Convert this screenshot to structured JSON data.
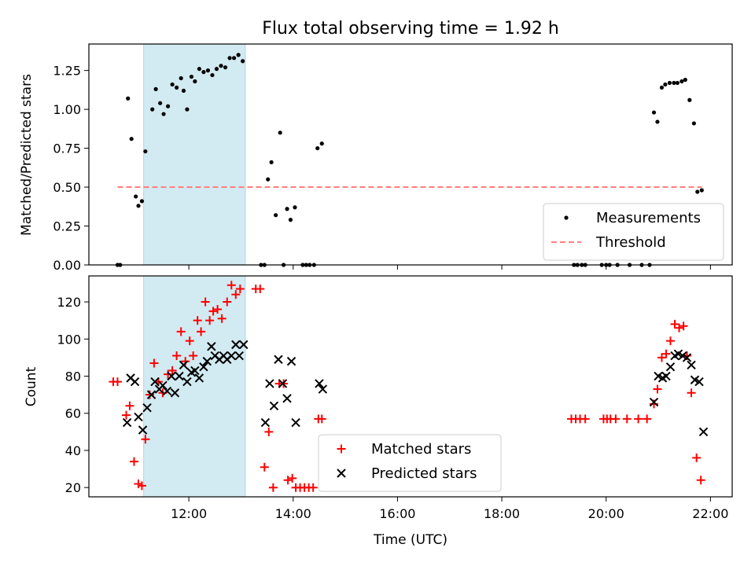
{
  "chart_data": {
    "title": "Flux total observing time = 1.92 h",
    "xlabel": "Time (UTC)",
    "x_ticks": [
      "12:00",
      "14:00",
      "16:00",
      "18:00",
      "20:00",
      "22:00"
    ],
    "x_range": [
      "10:05",
      "22:25"
    ],
    "shaded_interval": [
      "11:08",
      "13:05"
    ],
    "shaded_color": "#add8e6",
    "panels": [
      {
        "type": "scatter",
        "ylabel": "Matched/Predicted stars",
        "ylim": [
          0,
          1.42
        ],
        "y_ticks": [
          "0.00",
          "0.25",
          "0.50",
          "0.75",
          "1.00",
          "1.25"
        ],
        "legend_position": "lower right",
        "series": [
          {
            "name": "Measurements",
            "marker": "dot",
            "color": "#000000",
            "points": [
              [
                "10:38",
                0.0
              ],
              [
                "10:41",
                0.0
              ],
              [
                "10:50",
                1.07
              ],
              [
                "10:54",
                0.81
              ],
              [
                "10:59",
                0.44
              ],
              [
                "11:02",
                0.38
              ],
              [
                "11:06",
                0.41
              ],
              [
                "11:10",
                0.73
              ],
              [
                "11:18",
                1.0
              ],
              [
                "11:22",
                1.13
              ],
              [
                "11:27",
                1.04
              ],
              [
                "11:31",
                0.97
              ],
              [
                "11:36",
                1.02
              ],
              [
                "11:41",
                1.16
              ],
              [
                "11:46",
                1.14
              ],
              [
                "11:51",
                1.2
              ],
              [
                "11:54",
                1.12
              ],
              [
                "11:58",
                1.0
              ],
              [
                "12:03",
                1.21
              ],
              [
                "12:07",
                1.18
              ],
              [
                "12:12",
                1.26
              ],
              [
                "12:17",
                1.24
              ],
              [
                "12:22",
                1.25
              ],
              [
                "12:27",
                1.22
              ],
              [
                "12:32",
                1.26
              ],
              [
                "12:37",
                1.28
              ],
              [
                "12:42",
                1.27
              ],
              [
                "12:47",
                1.33
              ],
              [
                "12:52",
                1.33
              ],
              [
                "12:57",
                1.35
              ],
              [
                "13:02",
                1.31
              ],
              [
                "13:23",
                0.0
              ],
              [
                "13:27",
                0.0
              ],
              [
                "13:31",
                0.55
              ],
              [
                "13:35",
                0.66
              ],
              [
                "13:40",
                0.32
              ],
              [
                "13:45",
                0.85
              ],
              [
                "13:49",
                0.0
              ],
              [
                "13:53",
                0.36
              ],
              [
                "13:57",
                0.29
              ],
              [
                "14:02",
                0.37
              ],
              [
                "14:11",
                0.0
              ],
              [
                "14:15",
                0.0
              ],
              [
                "14:19",
                0.0
              ],
              [
                "14:24",
                0.0
              ],
              [
                "14:28",
                0.75
              ],
              [
                "14:33",
                0.78
              ],
              [
                "19:23",
                0.0
              ],
              [
                "19:27",
                0.0
              ],
              [
                "19:32",
                0.0
              ],
              [
                "19:36",
                0.0
              ],
              [
                "19:55",
                0.0
              ],
              [
                "20:00",
                0.0
              ],
              [
                "20:04",
                0.0
              ],
              [
                "20:13",
                0.0
              ],
              [
                "20:27",
                0.0
              ],
              [
                "20:41",
                0.0
              ],
              [
                "20:50",
                0.0
              ],
              [
                "20:55",
                0.98
              ],
              [
                "20:59",
                0.92
              ],
              [
                "21:04",
                1.14
              ],
              [
                "21:08",
                1.16
              ],
              [
                "21:13",
                1.17
              ],
              [
                "21:18",
                1.17
              ],
              [
                "21:22",
                1.17
              ],
              [
                "21:27",
                1.18
              ],
              [
                "21:31",
                1.19
              ],
              [
                "21:36",
                1.06
              ],
              [
                "21:41",
                0.91
              ],
              [
                "21:45",
                0.47
              ],
              [
                "21:50",
                0.48
              ]
            ]
          },
          {
            "name": "Threshold",
            "marker": "dashed-line",
            "color": "#ff7f7f",
            "points": [
              [
                "10:38",
                0.5
              ],
              [
                "21:50",
                0.5
              ]
            ]
          }
        ]
      },
      {
        "type": "scatter",
        "ylabel": "Count",
        "ylim": [
          15,
          134
        ],
        "y_ticks": [
          "20",
          "40",
          "60",
          "80",
          "100",
          "120"
        ],
        "legend_position": "lower center",
        "series": [
          {
            "name": "Matched stars",
            "marker": "plus",
            "color": "#ff0000",
            "points": [
              [
                "10:33",
                77
              ],
              [
                "10:38",
                77
              ],
              [
                "10:48",
                59
              ],
              [
                "10:52",
                64
              ],
              [
                "10:57",
                34
              ],
              [
                "11:02",
                22
              ],
              [
                "11:06",
                21
              ],
              [
                "11:10",
                46
              ],
              [
                "11:15",
                70
              ],
              [
                "11:20",
                87
              ],
              [
                "11:25",
                77
              ],
              [
                "11:30",
                71
              ],
              [
                "11:36",
                81
              ],
              [
                "11:41",
                83
              ],
              [
                "11:46",
                91
              ],
              [
                "11:51",
                104
              ],
              [
                "11:56",
                88
              ],
              [
                "12:01",
                99
              ],
              [
                "12:05",
                91
              ],
              [
                "12:10",
                110
              ],
              [
                "12:14",
                104
              ],
              [
                "12:19",
                120
              ],
              [
                "12:24",
                110
              ],
              [
                "12:28",
                115
              ],
              [
                "12:33",
                116
              ],
              [
                "12:38",
                111
              ],
              [
                "12:44",
                120
              ],
              [
                "12:49",
                129
              ],
              [
                "12:54",
                124
              ],
              [
                "12:59",
                127
              ],
              [
                "13:17",
                127
              ],
              [
                "13:22",
                127
              ],
              [
                "13:27",
                31
              ],
              [
                "13:32",
                50
              ],
              [
                "13:37",
                20
              ],
              [
                "13:44",
                76
              ],
              [
                "13:49",
                76
              ],
              [
                "13:54",
                24
              ],
              [
                "13:59",
                25
              ],
              [
                "14:03",
                20
              ],
              [
                "14:08",
                20
              ],
              [
                "14:13",
                20
              ],
              [
                "14:18",
                20
              ],
              [
                "14:23",
                20
              ],
              [
                "14:29",
                57
              ],
              [
                "14:33",
                57
              ],
              [
                "19:20",
                57
              ],
              [
                "19:25",
                57
              ],
              [
                "19:30",
                57
              ],
              [
                "19:36",
                57
              ],
              [
                "19:57",
                57
              ],
              [
                "20:01",
                57
              ],
              [
                "20:05",
                57
              ],
              [
                "20:11",
                57
              ],
              [
                "20:24",
                57
              ],
              [
                "20:37",
                57
              ],
              [
                "20:47",
                57
              ],
              [
                "20:55",
                65
              ],
              [
                "20:59",
                73
              ],
              [
                "21:04",
                90
              ],
              [
                "21:09",
                92
              ],
              [
                "21:14",
                99
              ],
              [
                "21:19",
                108
              ],
              [
                "21:24",
                106
              ],
              [
                "21:29",
                107
              ],
              [
                "21:33",
                91
              ],
              [
                "21:38",
                71
              ],
              [
                "21:44",
                36
              ],
              [
                "21:49",
                24
              ]
            ]
          },
          {
            "name": "Predicted stars",
            "marker": "x",
            "color": "#000000",
            "points": [
              [
                "10:49",
                55
              ],
              [
                "10:53",
                79
              ],
              [
                "10:58",
                77
              ],
              [
                "11:02",
                58
              ],
              [
                "11:07",
                51
              ],
              [
                "11:12",
                63
              ],
              [
                "11:17",
                70
              ],
              [
                "11:21",
                77
              ],
              [
                "11:26",
                73
              ],
              [
                "11:30",
                75
              ],
              [
                "11:35",
                72
              ],
              [
                "11:40",
                80
              ],
              [
                "11:44",
                71
              ],
              [
                "11:49",
                80
              ],
              [
                "11:54",
                86
              ],
              [
                "11:58",
                77
              ],
              [
                "12:03",
                82
              ],
              [
                "12:07",
                83
              ],
              [
                "12:12",
                79
              ],
              [
                "12:17",
                85
              ],
              [
                "12:21",
                88
              ],
              [
                "12:26",
                96
              ],
              [
                "12:30",
                91
              ],
              [
                "12:35",
                89
              ],
              [
                "12:40",
                91
              ],
              [
                "12:44",
                89
              ],
              [
                "12:49",
                91
              ],
              [
                "12:54",
                97
              ],
              [
                "12:58",
                91
              ],
              [
                "13:03",
                97
              ],
              [
                "13:28",
                55
              ],
              [
                "13:33",
                76
              ],
              [
                "13:38",
                64
              ],
              [
                "13:43",
                89
              ],
              [
                "13:48",
                76
              ],
              [
                "13:53",
                68
              ],
              [
                "13:58",
                88
              ],
              [
                "14:03",
                55
              ],
              [
                "14:30",
                76
              ],
              [
                "14:34",
                73
              ],
              [
                "20:55",
                66
              ],
              [
                "21:00",
                80
              ],
              [
                "21:05",
                79
              ],
              [
                "21:09",
                80
              ],
              [
                "21:14",
                85
              ],
              [
                "21:19",
                91
              ],
              [
                "21:23",
                92
              ],
              [
                "21:28",
                91
              ],
              [
                "21:33",
                90
              ],
              [
                "21:38",
                86
              ],
              [
                "21:42",
                78
              ],
              [
                "21:47",
                77
              ],
              [
                "21:52",
                50
              ]
            ]
          }
        ]
      }
    ]
  }
}
